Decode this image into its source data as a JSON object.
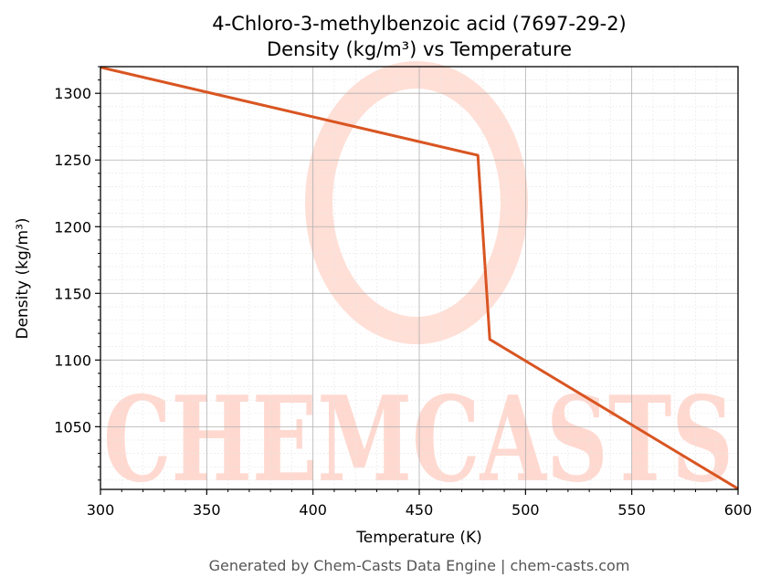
{
  "chart_data": {
    "type": "line",
    "title": "4-Chloro-3-methylbenzoic acid (7697-29-2)",
    "subtitle": "Density (kg/m³) vs Temperature",
    "xlabel": "Temperature (K)",
    "ylabel": "Density (kg/m³)",
    "xlim": [
      300,
      600
    ],
    "ylim": [
      1003,
      1320
    ],
    "xticks": [
      300,
      350,
      400,
      450,
      500,
      550,
      600
    ],
    "yticks": [
      1050,
      1100,
      1150,
      1200,
      1250,
      1300
    ],
    "grid": true,
    "minor_grid": true,
    "series": [
      {
        "color": "#d95522",
        "x": [
          300,
          477.6,
          483.2,
          600
        ],
        "y": [
          1319.5,
          1253.5,
          1115.5,
          1003.5
        ]
      }
    ]
  },
  "watermark": {
    "text": "CHEMCASTS"
  },
  "footer": "Generated by Chem-Casts Data Engine | chem-casts.com"
}
